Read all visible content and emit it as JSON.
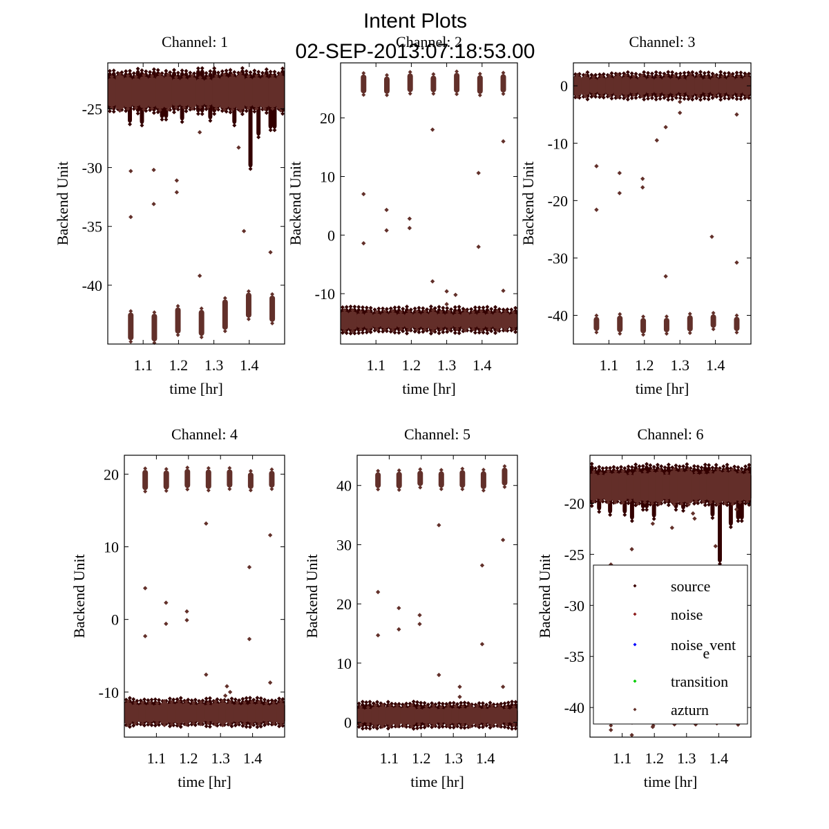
{
  "figure": {
    "title_line1": "Intent Plots",
    "title_line2": "02-SEP-2013:07:18:53.00"
  },
  "chart_data": [
    {
      "type": "scatter",
      "title": "Channel: 1",
      "xlabel": "time [hr]",
      "ylabel": "Backend Unit",
      "xlim": [
        1.0,
        1.5
      ],
      "ylim": [
        -45.0,
        -21.1
      ],
      "xticks": [
        1.1,
        1.2,
        1.3,
        1.4
      ],
      "xtick_labels": [
        "1.1",
        "1.2",
        "1.3",
        "1.4"
      ],
      "yticks": [
        -25,
        -30,
        -35,
        -40
      ],
      "ytick_labels": [
        "-25",
        "-30",
        "-35",
        "-40"
      ],
      "bands": [
        {
          "series": "source",
          "x_start": 1.0,
          "x_end": 1.5,
          "segments": 44,
          "center": -23.5,
          "spread": 1.6,
          "dips": [
            [
              1.06,
              -26.2
            ],
            [
              1.1,
              -26.3
            ],
            [
              1.16,
              -25.8
            ],
            [
              1.21,
              -26.0
            ],
            [
              1.29,
              -25.9
            ],
            [
              1.36,
              -26.3
            ],
            [
              1.405,
              -30.0
            ],
            [
              1.43,
              -27.3
            ],
            [
              1.465,
              -26.7
            ]
          ]
        },
        {
          "series": "azturn",
          "x_start": 1.0,
          "x_end": 1.5,
          "segments": 22,
          "center": -23.6,
          "spread": 1.3,
          "dips": []
        },
        {
          "series": "noise",
          "x_start": 1.065,
          "x_end": 1.465,
          "segments": 7,
          "center": -42.8,
          "spread": 1.2,
          "levels": [
            -43.5,
            -43.6,
            -43.0,
            -43.2,
            -42.5,
            -41.7,
            -42.0
          ]
        }
      ],
      "outliers": [
        [
          1.065,
          -30.3
        ],
        [
          1.13,
          -30.2
        ],
        [
          1.13,
          -33.1
        ],
        [
          1.065,
          -34.2
        ],
        [
          1.195,
          -31.1
        ],
        [
          1.195,
          -32.1
        ],
        [
          1.26,
          -27.0
        ],
        [
          1.26,
          -39.2
        ],
        [
          1.385,
          -35.4
        ],
        [
          1.37,
          -28.3
        ],
        [
          1.46,
          -37.2
        ],
        [
          1.195,
          -24.6
        ]
      ]
    },
    {
      "type": "scatter",
      "title": "Channel: 2",
      "xlabel": "time [hr]",
      "ylabel": "Backend Unit",
      "xlim": [
        1.0,
        1.5
      ],
      "ylim": [
        -18.6,
        29.4
      ],
      "xticks": [
        1.1,
        1.2,
        1.3,
        1.4
      ],
      "xtick_labels": [
        "1.1",
        "1.2",
        "1.3",
        "1.4"
      ],
      "yticks": [
        20,
        10,
        0,
        -10
      ],
      "ytick_labels": [
        "20",
        "10",
        "0",
        "-10"
      ],
      "bands": [
        {
          "series": "source",
          "x_start": 1.0,
          "x_end": 1.5,
          "segments": 44,
          "center": -14.5,
          "spread": 1.8,
          "dips": []
        },
        {
          "series": "azturn",
          "x_start": 1.0,
          "x_end": 1.5,
          "segments": 22,
          "center": -14.6,
          "spread": 1.4,
          "dips": []
        },
        {
          "series": "noise",
          "x_start": 1.065,
          "x_end": 1.46,
          "segments": 7,
          "center": 25.8,
          "spread": 1.5,
          "levels": [
            25.8,
            25.6,
            26.0,
            25.8,
            26.0,
            25.7,
            25.9
          ]
        }
      ],
      "outliers": [
        [
          1.065,
          7.0
        ],
        [
          1.065,
          -1.4
        ],
        [
          1.13,
          4.3
        ],
        [
          1.13,
          0.8
        ],
        [
          1.195,
          2.8
        ],
        [
          1.195,
          1.2
        ],
        [
          1.26,
          18.0
        ],
        [
          1.26,
          -7.9
        ],
        [
          1.39,
          10.6
        ],
        [
          1.39,
          -2.0
        ],
        [
          1.46,
          16.0
        ],
        [
          1.46,
          -9.5
        ],
        [
          1.3,
          -9.6
        ],
        [
          1.3,
          -11.8
        ],
        [
          1.325,
          -10.2
        ]
      ]
    },
    {
      "type": "scatter",
      "title": "Channel: 3",
      "xlabel": "time [hr]",
      "ylabel": "Backend Unit",
      "xlim": [
        1.0,
        1.5
      ],
      "ylim": [
        -45.0,
        4.0
      ],
      "xticks": [
        1.1,
        1.2,
        1.3,
        1.4
      ],
      "xtick_labels": [
        "1.1",
        "1.2",
        "1.3",
        "1.4"
      ],
      "yticks": [
        0,
        -10,
        -20,
        -30,
        -40
      ],
      "ytick_labels": [
        "0",
        "-10",
        "-20",
        "-30",
        "-40"
      ],
      "bands": [
        {
          "series": "source",
          "x_start": 1.0,
          "x_end": 1.5,
          "segments": 44,
          "center": 0.0,
          "spread": 1.9,
          "dips": []
        },
        {
          "series": "azturn",
          "x_start": 1.0,
          "x_end": 1.5,
          "segments": 22,
          "center": 0.0,
          "spread": 1.5,
          "dips": []
        },
        {
          "series": "noise",
          "x_start": 1.065,
          "x_end": 1.46,
          "segments": 7,
          "center": -41.3,
          "spread": 1.3,
          "levels": [
            -41.5,
            -41.5,
            -41.8,
            -41.7,
            -41.4,
            -41.0,
            -41.5
          ]
        }
      ],
      "outliers": [
        [
          1.065,
          -14.0
        ],
        [
          1.065,
          -21.6
        ],
        [
          1.13,
          -15.2
        ],
        [
          1.13,
          -18.7
        ],
        [
          1.195,
          -16.2
        ],
        [
          1.195,
          -17.7
        ],
        [
          1.26,
          -7.2
        ],
        [
          1.26,
          -33.2
        ],
        [
          1.39,
          -26.3
        ],
        [
          1.46,
          -5.0
        ],
        [
          1.46,
          -30.8
        ],
        [
          1.3,
          -2.8
        ],
        [
          1.3,
          -4.7
        ],
        [
          1.235,
          -9.5
        ]
      ]
    },
    {
      "type": "scatter",
      "title": "Channel: 4",
      "xlabel": "time [hr]",
      "ylabel": "Backend Unit",
      "xlim": [
        1.0,
        1.5
      ],
      "ylim": [
        -16.2,
        22.6
      ],
      "xticks": [
        1.1,
        1.2,
        1.3,
        1.4
      ],
      "xtick_labels": [
        "1.1",
        "1.2",
        "1.3",
        "1.4"
      ],
      "yticks": [
        20,
        10,
        0,
        -10
      ],
      "ytick_labels": [
        "20",
        "10",
        "0",
        "-10"
      ],
      "bands": [
        {
          "series": "source",
          "x_start": 1.0,
          "x_end": 1.5,
          "segments": 44,
          "center": -12.8,
          "spread": 1.6,
          "dips": []
        },
        {
          "series": "azturn",
          "x_start": 1.0,
          "x_end": 1.5,
          "segments": 22,
          "center": -12.9,
          "spread": 1.3,
          "dips": []
        },
        {
          "series": "noise",
          "x_start": 1.065,
          "x_end": 1.46,
          "segments": 7,
          "center": 19.2,
          "spread": 1.3,
          "levels": [
            19.2,
            19.2,
            19.4,
            19.3,
            19.4,
            19.1,
            19.3
          ]
        }
      ],
      "outliers": [
        [
          1.065,
          4.3
        ],
        [
          1.065,
          -2.3
        ],
        [
          1.13,
          2.3
        ],
        [
          1.13,
          -0.6
        ],
        [
          1.195,
          1.1
        ],
        [
          1.195,
          -0.1
        ],
        [
          1.255,
          13.2
        ],
        [
          1.255,
          -7.6
        ],
        [
          1.39,
          7.2
        ],
        [
          1.39,
          -2.7
        ],
        [
          1.455,
          11.6
        ],
        [
          1.455,
          -8.7
        ],
        [
          1.32,
          -9.2
        ],
        [
          1.315,
          -10.5
        ],
        [
          1.33,
          -10.0
        ]
      ]
    },
    {
      "type": "scatter",
      "title": "Channel: 5",
      "xlabel": "time [hr]",
      "ylabel": "Backend Unit",
      "xlim": [
        1.0,
        1.5
      ],
      "ylim": [
        -2.5,
        45.1
      ],
      "xticks": [
        1.1,
        1.2,
        1.3,
        1.4
      ],
      "xtick_labels": [
        "1.1",
        "1.2",
        "1.3",
        "1.4"
      ],
      "yticks": [
        40,
        30,
        20,
        10,
        0
      ],
      "ytick_labels": [
        "40",
        "30",
        "20",
        "10",
        "0"
      ],
      "bands": [
        {
          "series": "source",
          "x_start": 1.0,
          "x_end": 1.5,
          "segments": 44,
          "center": 1.2,
          "spread": 1.8,
          "dips": []
        },
        {
          "series": "azturn",
          "x_start": 1.0,
          "x_end": 1.5,
          "segments": 22,
          "center": 1.1,
          "spread": 1.4,
          "dips": []
        },
        {
          "series": "noise",
          "x_start": 1.065,
          "x_end": 1.46,
          "segments": 7,
          "center": 41.0,
          "spread": 1.5,
          "levels": [
            40.9,
            40.9,
            41.2,
            41.0,
            41.1,
            40.9,
            41.5
          ]
        }
      ],
      "outliers": [
        [
          1.065,
          22.0
        ],
        [
          1.065,
          14.7
        ],
        [
          1.13,
          19.3
        ],
        [
          1.13,
          15.7
        ],
        [
          1.195,
          18.1
        ],
        [
          1.195,
          16.6
        ],
        [
          1.255,
          33.3
        ],
        [
          1.255,
          8.0
        ],
        [
          1.39,
          26.5
        ],
        [
          1.39,
          13.2
        ],
        [
          1.455,
          30.8
        ],
        [
          1.455,
          6.0
        ],
        [
          1.32,
          6.0
        ],
        [
          1.32,
          4.3
        ]
      ]
    },
    {
      "type": "scatter",
      "title": "Channel: 6",
      "xlabel": "time [hr]",
      "ylabel": "Backend Unit",
      "xlim": [
        1.0,
        1.5
      ],
      "ylim": [
        -42.9,
        -15.3
      ],
      "xticks": [
        1.1,
        1.2,
        1.3,
        1.4
      ],
      "xtick_labels": [
        "1.1",
        "1.2",
        "1.3",
        "1.4"
      ],
      "yticks": [
        -20,
        -25,
        -30,
        -35,
        -40
      ],
      "ytick_labels": [
        "-20",
        "-25",
        "-30",
        "-35",
        "-40"
      ],
      "bands": [
        {
          "series": "source",
          "x_start": 1.0,
          "x_end": 1.5,
          "segments": 44,
          "center": -18.2,
          "spread": 1.7,
          "dips": [
            [
              1.03,
              -20.7
            ],
            [
              1.06,
              -21.0
            ],
            [
              1.11,
              -21.0
            ],
            [
              1.13,
              -21.6
            ],
            [
              1.17,
              -20.5
            ],
            [
              1.2,
              -21.4
            ],
            [
              1.265,
              -20.5
            ],
            [
              1.29,
              -20.6
            ],
            [
              1.385,
              -21.3
            ],
            [
              1.405,
              -25.8
            ],
            [
              1.44,
              -22.2
            ],
            [
              1.465,
              -21.6
            ]
          ]
        },
        {
          "series": "azturn",
          "x_start": 1.0,
          "x_end": 1.5,
          "segments": 22,
          "center": -18.4,
          "spread": 1.4,
          "dips": []
        },
        {
          "series": "noise",
          "x_start": 1.065,
          "x_end": 1.46,
          "segments": 7,
          "center": -40.0,
          "spread": 1.5,
          "levels": [
            -40.0,
            -40.0,
            -40.0,
            -40.0,
            -40.0,
            -40.0,
            -40.0
          ]
        }
      ],
      "outliers": [
        [
          1.065,
          -26.0
        ],
        [
          1.13,
          -24.5
        ],
        [
          1.195,
          -22.0
        ],
        [
          1.255,
          -22.4
        ],
        [
          1.39,
          -24.2
        ],
        [
          1.455,
          -20.6
        ],
        [
          1.065,
          -42.2
        ],
        [
          1.13,
          -42.7
        ],
        [
          1.195,
          -41.9
        ],
        [
          1.32,
          -21.0
        ],
        [
          1.325,
          -21.5
        ]
      ]
    }
  ],
  "legend": {
    "location": "lower-right of Channel 6 panel",
    "entries": [
      {
        "label": "source",
        "color": "#3a0000"
      },
      {
        "label": "noise",
        "color": "#8b1a1a"
      },
      {
        "label": "noise",
        "label_sub": "e",
        "label_tail": "vent",
        "color": "#0000ff"
      },
      {
        "label": "transition",
        "color": "#00cc00"
      },
      {
        "label": "azturn",
        "color": "#62302a"
      }
    ]
  },
  "colors": {
    "source": "#330000",
    "azturn": "#632e29",
    "noise": "#62302a",
    "outlier": "#62302a",
    "axes": "#000000"
  }
}
